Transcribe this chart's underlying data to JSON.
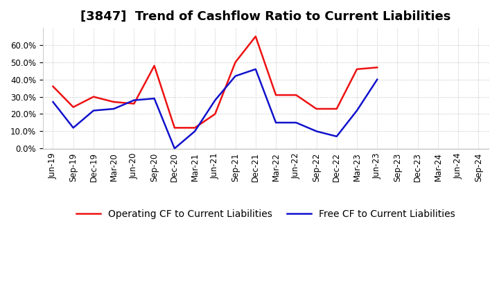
{
  "title": "[3847]  Trend of Cashflow Ratio to Current Liabilities",
  "x_labels": [
    "Jun-19",
    "Sep-19",
    "Dec-19",
    "Mar-20",
    "Jun-20",
    "Sep-20",
    "Dec-20",
    "Mar-21",
    "Jun-21",
    "Sep-21",
    "Dec-21",
    "Mar-22",
    "Jun-22",
    "Sep-22",
    "Dec-22",
    "Mar-23",
    "Jun-23",
    "Sep-23",
    "Dec-23",
    "Mar-24",
    "Jun-24",
    "Sep-24"
  ],
  "operating_cf_values": [
    0.36,
    0.24,
    0.3,
    0.27,
    0.26,
    0.48,
    0.12,
    0.12,
    0.2,
    0.5,
    0.65,
    0.31,
    0.31,
    0.23,
    0.23,
    0.46,
    0.47,
    null,
    null,
    null,
    null,
    null
  ],
  "free_cf_values": [
    0.27,
    0.12,
    0.22,
    0.23,
    0.28,
    0.29,
    0.0,
    0.1,
    0.28,
    0.42,
    0.46,
    0.15,
    0.15,
    0.1,
    0.07,
    0.22,
    0.4,
    null,
    null,
    null,
    null,
    null
  ],
  "operating_color": "#EE1111",
  "free_color": "#1111CC",
  "grid_color": "#BBBBBB",
  "background_color": "#FFFFFF",
  "ylim": [
    -0.005,
    0.7
  ],
  "yticks": [
    0.0,
    0.1,
    0.2,
    0.3,
    0.4,
    0.5,
    0.6
  ],
  "legend_op": "Operating CF to Current Liabilities",
  "legend_free": "Free CF to Current Liabilities",
  "title_fontsize": 13,
  "axis_fontsize": 8.5,
  "legend_fontsize": 10,
  "linewidth": 1.8
}
